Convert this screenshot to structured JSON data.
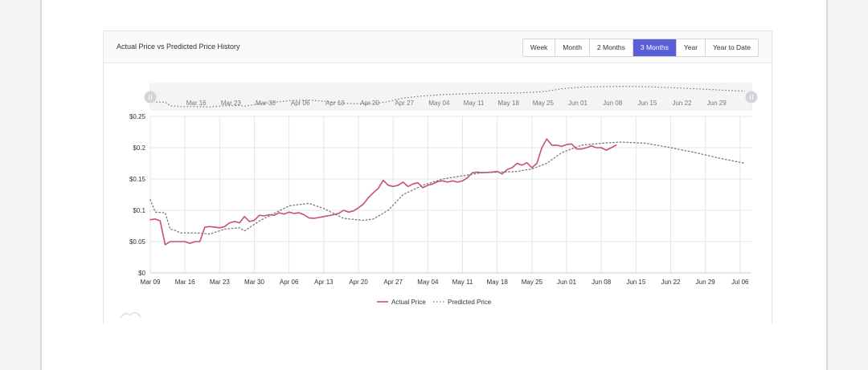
{
  "card": {
    "title": "Actual Price vs Predicted Price History",
    "ranges": [
      "Week",
      "Month",
      "2 Months",
      "3 Months",
      "Year",
      "Year to Date"
    ],
    "active_range": "3 Months"
  },
  "colors": {
    "actual": "#c9506e",
    "predicted": "#777777",
    "active_button": "#5b5fd6",
    "grid": "#e6e6e6"
  },
  "chart_data": {
    "type": "line",
    "title": "Actual Price vs Predicted Price History",
    "xlabel": "",
    "ylabel": "",
    "x_range": [
      "2020-03-09",
      "2020-07-07"
    ],
    "ylim": [
      0,
      0.25
    ],
    "y_ticks": [
      0,
      0.05,
      0.1,
      0.15,
      0.2,
      0.25
    ],
    "y_tick_labels": [
      "$0",
      "$0.05",
      "$0.1",
      "$0.15",
      "$0.2",
      "$0.25"
    ],
    "x_ticks": [
      "2020-03-09",
      "2020-03-16",
      "2020-03-23",
      "2020-03-30",
      "2020-04-06",
      "2020-04-13",
      "2020-04-20",
      "2020-04-27",
      "2020-05-04",
      "2020-05-11",
      "2020-05-18",
      "2020-05-25",
      "2020-06-01",
      "2020-06-08",
      "2020-06-15",
      "2020-06-22",
      "2020-06-29",
      "2020-07-06"
    ],
    "x_tick_labels": [
      "Mar 09",
      "Mar 16",
      "Mar 23",
      "Mar 30",
      "Apr 06",
      "Apr 13",
      "Apr 20",
      "Apr 27",
      "May 04",
      "May 11",
      "May 18",
      "May 25",
      "Jun 01",
      "Jun 08",
      "Jun 15",
      "Jun 22",
      "Jun 29",
      "Jul 06"
    ],
    "navigator_labels": [
      "Mar 16",
      "Mar 23",
      "Mar 30",
      "Apr 06",
      "Apr 13",
      "Apr 20",
      "Apr 27",
      "May 04",
      "May 11",
      "May 18",
      "May 25",
      "Jun 01",
      "Jun 08",
      "Jun 15",
      "Jun 22",
      "Jun 29"
    ],
    "grid": true,
    "legend_position": "bottom-center",
    "series": [
      {
        "name": "Actual Price",
        "style": "solid",
        "points": [
          [
            "2020-03-09",
            0.085
          ],
          [
            "2020-03-10",
            0.086
          ],
          [
            "2020-03-11",
            0.083
          ],
          [
            "2020-03-12",
            0.045
          ],
          [
            "2020-03-13",
            0.05
          ],
          [
            "2020-03-14",
            0.05
          ],
          [
            "2020-03-16",
            0.05
          ],
          [
            "2020-03-17",
            0.047
          ],
          [
            "2020-03-18",
            0.05
          ],
          [
            "2020-03-19",
            0.05
          ],
          [
            "2020-03-20",
            0.073
          ],
          [
            "2020-03-21",
            0.074
          ],
          [
            "2020-03-23",
            0.072
          ],
          [
            "2020-03-24",
            0.074
          ],
          [
            "2020-03-25",
            0.08
          ],
          [
            "2020-03-26",
            0.082
          ],
          [
            "2020-03-27",
            0.08
          ],
          [
            "2020-03-28",
            0.09
          ],
          [
            "2020-03-29",
            0.082
          ],
          [
            "2020-03-30",
            0.084
          ],
          [
            "2020-03-31",
            0.092
          ],
          [
            "2020-04-01",
            0.091
          ],
          [
            "2020-04-02",
            0.093
          ],
          [
            "2020-04-03",
            0.092
          ],
          [
            "2020-04-04",
            0.096
          ],
          [
            "2020-04-05",
            0.094
          ],
          [
            "2020-04-06",
            0.097
          ],
          [
            "2020-04-07",
            0.095
          ],
          [
            "2020-04-08",
            0.096
          ],
          [
            "2020-04-09",
            0.093
          ],
          [
            "2020-04-10",
            0.088
          ],
          [
            "2020-04-11",
            0.087
          ],
          [
            "2020-04-13",
            0.09
          ],
          [
            "2020-04-15",
            0.093
          ],
          [
            "2020-04-16",
            0.095
          ],
          [
            "2020-04-17",
            0.1
          ],
          [
            "2020-04-18",
            0.097
          ],
          [
            "2020-04-19",
            0.099
          ],
          [
            "2020-04-20",
            0.104
          ],
          [
            "2020-04-21",
            0.11
          ],
          [
            "2020-04-22",
            0.12
          ],
          [
            "2020-04-23",
            0.128
          ],
          [
            "2020-04-24",
            0.135
          ],
          [
            "2020-04-25",
            0.148
          ],
          [
            "2020-04-26",
            0.14
          ],
          [
            "2020-04-27",
            0.138
          ],
          [
            "2020-04-28",
            0.14
          ],
          [
            "2020-04-29",
            0.145
          ],
          [
            "2020-04-30",
            0.138
          ],
          [
            "2020-05-01",
            0.142
          ],
          [
            "2020-05-02",
            0.144
          ],
          [
            "2020-05-03",
            0.136
          ],
          [
            "2020-05-04",
            0.14
          ],
          [
            "2020-05-05",
            0.142
          ],
          [
            "2020-05-06",
            0.146
          ],
          [
            "2020-05-07",
            0.147
          ],
          [
            "2020-05-08",
            0.145
          ],
          [
            "2020-05-09",
            0.147
          ],
          [
            "2020-05-10",
            0.145
          ],
          [
            "2020-05-11",
            0.147
          ],
          [
            "2020-05-12",
            0.152
          ],
          [
            "2020-05-13",
            0.16
          ],
          [
            "2020-05-14",
            0.161
          ],
          [
            "2020-05-15",
            0.16
          ],
          [
            "2020-05-17",
            0.161
          ],
          [
            "2020-05-18",
            0.162
          ],
          [
            "2020-05-19",
            0.158
          ],
          [
            "2020-05-20",
            0.165
          ],
          [
            "2020-05-21",
            0.168
          ],
          [
            "2020-05-22",
            0.175
          ],
          [
            "2020-05-23",
            0.172
          ],
          [
            "2020-05-24",
            0.176
          ],
          [
            "2020-05-25",
            0.168
          ],
          [
            "2020-05-26",
            0.175
          ],
          [
            "2020-05-27",
            0.2
          ],
          [
            "2020-05-28",
            0.214
          ],
          [
            "2020-05-29",
            0.204
          ],
          [
            "2020-05-30",
            0.204
          ],
          [
            "2020-05-31",
            0.202
          ],
          [
            "2020-06-01",
            0.205
          ],
          [
            "2020-06-02",
            0.206
          ],
          [
            "2020-06-03",
            0.198
          ],
          [
            "2020-06-04",
            0.198
          ],
          [
            "2020-06-05",
            0.2
          ],
          [
            "2020-06-06",
            0.203
          ],
          [
            "2020-06-07",
            0.2
          ],
          [
            "2020-06-08",
            0.2
          ],
          [
            "2020-06-09",
            0.196
          ],
          [
            "2020-06-10",
            0.2
          ],
          [
            "2020-06-11",
            0.204
          ]
        ]
      },
      {
        "name": "Predicted Price",
        "style": "dotted",
        "points": [
          [
            "2020-03-09",
            0.117
          ],
          [
            "2020-03-10",
            0.097
          ],
          [
            "2020-03-12",
            0.096
          ],
          [
            "2020-03-13",
            0.07
          ],
          [
            "2020-03-14",
            0.068
          ],
          [
            "2020-03-15",
            0.064
          ],
          [
            "2020-03-18",
            0.064
          ],
          [
            "2020-03-21",
            0.062
          ],
          [
            "2020-03-24",
            0.07
          ],
          [
            "2020-03-27",
            0.072
          ],
          [
            "2020-03-28",
            0.067
          ],
          [
            "2020-03-31",
            0.083
          ],
          [
            "2020-04-03",
            0.095
          ],
          [
            "2020-04-06",
            0.107
          ],
          [
            "2020-04-10",
            0.111
          ],
          [
            "2020-04-13",
            0.103
          ],
          [
            "2020-04-17",
            0.087
          ],
          [
            "2020-04-21",
            0.084
          ],
          [
            "2020-04-23",
            0.086
          ],
          [
            "2020-04-26",
            0.1
          ],
          [
            "2020-04-29",
            0.125
          ],
          [
            "2020-05-03",
            0.14
          ],
          [
            "2020-05-07",
            0.15
          ],
          [
            "2020-05-11",
            0.155
          ],
          [
            "2020-05-15",
            0.16
          ],
          [
            "2020-05-19",
            0.161
          ],
          [
            "2020-05-22",
            0.162
          ],
          [
            "2020-05-25",
            0.166
          ],
          [
            "2020-05-28",
            0.175
          ],
          [
            "2020-05-31",
            0.192
          ],
          [
            "2020-06-04",
            0.204
          ],
          [
            "2020-06-08",
            0.207
          ],
          [
            "2020-06-12",
            0.209
          ],
          [
            "2020-06-17",
            0.207
          ],
          [
            "2020-06-22",
            0.2
          ],
          [
            "2020-06-27",
            0.192
          ],
          [
            "2020-07-02",
            0.183
          ],
          [
            "2020-07-07",
            0.175
          ]
        ]
      }
    ]
  }
}
